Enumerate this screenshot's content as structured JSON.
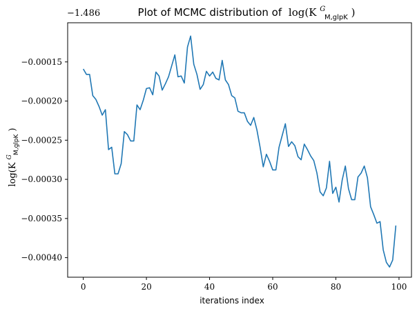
{
  "chart_data": {
    "type": "line",
    "title_prefix": "Plot of MCMC distribution of",
    "title_math": "log(K",
    "title_sup": "G",
    "title_sub": "M,glpK",
    "title_close": ")",
    "ylabel_math": "log(K",
    "ylabel_sup": "G",
    "ylabel_sub": "M,glpK",
    "ylabel_close": ")",
    "xlabel": "iterations index",
    "offset_text": "−1.486",
    "x_ticks": [
      0,
      20,
      40,
      60,
      80,
      100
    ],
    "x_tick_labels": [
      "0",
      "20",
      "40",
      "60",
      "80",
      "100"
    ],
    "y_ticks": [
      -0.00015,
      -0.0002,
      -0.00025,
      -0.0003,
      -0.00035,
      -0.0004
    ],
    "y_tick_labels": [
      "−0.00015",
      "−0.00020",
      "−0.00025",
      "−0.00030",
      "−0.00035",
      "−0.00040"
    ],
    "xlim": [
      -4.95,
      103.95
    ],
    "ylim": [
      -0.000425,
      -0.0001
    ],
    "line_color": "#1f77b4",
    "grid": false,
    "series": [
      {
        "x": [
          0,
          1,
          2,
          3,
          4,
          5,
          6,
          7,
          8,
          9,
          10,
          11,
          12,
          13,
          14,
          15,
          16,
          17,
          18,
          19,
          20,
          21,
          22,
          23,
          24,
          25,
          26,
          27,
          28,
          29,
          30,
          31,
          32,
          33,
          34,
          35,
          36,
          37,
          38,
          39,
          40,
          41,
          42,
          43,
          44,
          45,
          46,
          47,
          48,
          49,
          50,
          51,
          52,
          53,
          54,
          55,
          56,
          57,
          58,
          59,
          60,
          61,
          62,
          63,
          64,
          65,
          66,
          67,
          68,
          69,
          70,
          71,
          72,
          73,
          74,
          75,
          76,
          77,
          78,
          79,
          80,
          81,
          82,
          83,
          84,
          85,
          86,
          87,
          88,
          89,
          90,
          91,
          92,
          93,
          94,
          95,
          96,
          97,
          98,
          99
        ],
        "values": [
          -0.000159,
          -0.000166,
          -0.000166,
          -0.000193,
          -0.000198,
          -0.000207,
          -0.000218,
          -0.000211,
          -0.000262,
          -0.000259,
          -0.000293,
          -0.000293,
          -0.00028,
          -0.000239,
          -0.000243,
          -0.000251,
          -0.000251,
          -0.000205,
          -0.000211,
          -0.000199,
          -0.000184,
          -0.000183,
          -0.000192,
          -0.000163,
          -0.000168,
          -0.000186,
          -0.000178,
          -0.000169,
          -0.000155,
          -0.000141,
          -0.000169,
          -0.000168,
          -0.000177,
          -0.000131,
          -0.000117,
          -0.000153,
          -0.000166,
          -0.000185,
          -0.000179,
          -0.000162,
          -0.000168,
          -0.000163,
          -0.000171,
          -0.000173,
          -0.000148,
          -0.000173,
          -0.000179,
          -0.000193,
          -0.000196,
          -0.000213,
          -0.000215,
          -0.000215,
          -0.000226,
          -0.000231,
          -0.000221,
          -0.000237,
          -0.000259,
          -0.000284,
          -0.000268,
          -0.000277,
          -0.000288,
          -0.000288,
          -0.000259,
          -0.000244,
          -0.000229,
          -0.000258,
          -0.000252,
          -0.000257,
          -0.000271,
          -0.000275,
          -0.000255,
          -0.000262,
          -0.00027,
          -0.000276,
          -0.000292,
          -0.000316,
          -0.000321,
          -0.000311,
          -0.000277,
          -0.000318,
          -0.00031,
          -0.000329,
          -0.000301,
          -0.000283,
          -0.000312,
          -0.000326,
          -0.000326,
          -0.000297,
          -0.000292,
          -0.000283,
          -0.000298,
          -0.000335,
          -0.000345,
          -0.000356,
          -0.000354,
          -0.00039,
          -0.000406,
          -0.000412,
          -0.000403,
          -0.000359
        ]
      }
    ]
  }
}
